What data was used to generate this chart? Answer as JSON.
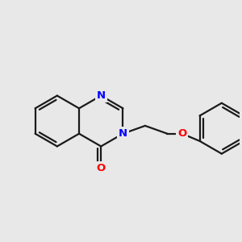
{
  "bg_color": "#e8e8e8",
  "bond_color": "#1a1a1a",
  "bond_width": 1.6,
  "n_color": "#0000ff",
  "o_color": "#ff0000",
  "font_size_atom": 9.5,
  "fig_size": [
    3.0,
    3.0
  ],
  "dpi": 100,
  "xlim": [
    -2.0,
    2.5
  ],
  "ylim": [
    -1.6,
    1.6
  ]
}
